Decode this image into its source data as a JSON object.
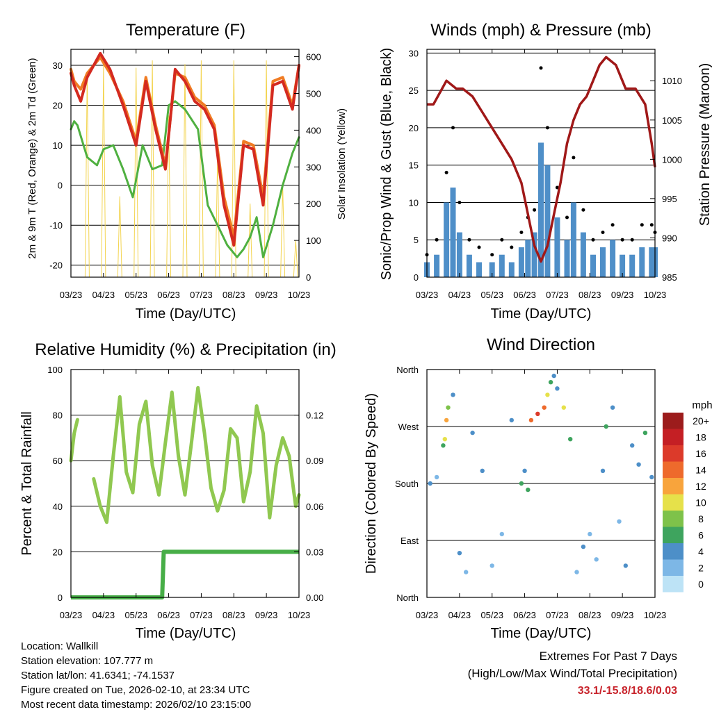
{
  "colors": {
    "t2m": "#d42a20",
    "t9m": "#f07c24",
    "td": "#4fb040",
    "solar": "#f3d450",
    "gust": "#000000",
    "wind": "#4f8fc8",
    "pressure": "#a01818",
    "rh": "#90c850",
    "precip": "#47ae47",
    "grid": "#000000"
  },
  "chart_data": [
    {
      "id": "temperature",
      "type": "line",
      "title": "Temperature (F)",
      "xlabel": "Time (Day/UTC)",
      "ylabel": "2m & 9m T (Red, Orange) & 2m Td (Green)",
      "ylabel2": "Solar Insolation (Yellow)",
      "x_ticks": [
        "03/23",
        "04/23",
        "05/23",
        "06/23",
        "07/23",
        "08/23",
        "09/23",
        "10/23"
      ],
      "y_ticks": [
        "30",
        "20",
        "10",
        "0",
        "-10",
        "-20"
      ],
      "y2_ticks": [
        "600",
        "500",
        "400",
        "300",
        "200",
        "100",
        "0"
      ],
      "ylim": [
        -23,
        34
      ],
      "y2lim": [
        0,
        620
      ],
      "series": [
        {
          "name": "2m T",
          "color": "#d42a20",
          "x": [
            0.0,
            0.1,
            0.3,
            0.5,
            0.9,
            1.2,
            1.6,
            2.0,
            2.3,
            2.6,
            2.9,
            3.2,
            3.5,
            3.8,
            4.1,
            4.4,
            4.7,
            5.0,
            5.3,
            5.6,
            5.9,
            6.2,
            6.5,
            6.8,
            7.0
          ],
          "values": [
            28,
            25,
            21,
            27,
            33,
            29,
            20,
            10,
            26,
            14,
            4,
            29,
            26,
            21,
            19,
            14,
            -5,
            -15,
            10,
            9,
            -5,
            25,
            26,
            19,
            30
          ]
        },
        {
          "name": "9m T",
          "color": "#f07c24",
          "x": [
            0.0,
            0.1,
            0.3,
            0.5,
            0.9,
            1.2,
            1.6,
            2.0,
            2.3,
            2.6,
            2.9,
            3.2,
            3.5,
            3.8,
            4.1,
            4.4,
            4.7,
            5.0,
            5.3,
            5.6,
            5.9,
            6.2,
            6.5,
            6.8,
            7.0
          ],
          "values": [
            29,
            26,
            24,
            28,
            32,
            28,
            21,
            11,
            27,
            15,
            5,
            28,
            27,
            22,
            20,
            15,
            -3,
            -13,
            11,
            10,
            -3,
            26,
            27,
            20,
            30
          ]
        },
        {
          "name": "2m Td",
          "color": "#4fb040",
          "x": [
            0.0,
            0.1,
            0.2,
            0.5,
            0.8,
            1.0,
            1.3,
            1.6,
            1.9,
            2.2,
            2.5,
            2.8,
            3.0,
            3.2,
            3.5,
            3.9,
            4.2,
            4.5,
            4.8,
            5.1,
            5.3,
            5.5,
            5.7,
            5.9,
            6.2,
            6.5,
            6.8,
            7.0
          ],
          "values": [
            14,
            16,
            15,
            7,
            5,
            9,
            10,
            4,
            -3,
            10,
            4,
            5,
            20,
            21,
            19,
            14,
            -5,
            -10,
            -15,
            -18,
            -16,
            -13,
            -8,
            -18,
            -10,
            0,
            8,
            12
          ]
        },
        {
          "name": "Solar Insolation",
          "color": "#f3d450",
          "axis": "y2",
          "x": [
            0.5,
            1.0,
            1.5,
            2.0,
            2.5,
            3.0,
            3.5,
            4.0,
            4.5,
            5.0,
            5.5,
            6.0,
            6.5,
            6.9
          ],
          "values": [
            560,
            580,
            220,
            570,
            590,
            440,
            580,
            590,
            330,
            590,
            200,
            590,
            250,
            100
          ]
        }
      ]
    },
    {
      "id": "winds",
      "type": "scatter",
      "title": "Winds (mph) & Pressure (mb)",
      "xlabel": "Time (Day/UTC)",
      "ylabel": "Sonic/Prop Wind & Gust (Blue, Black)",
      "ylabel2": "Station Pressure (Maroon)",
      "x_ticks": [
        "03/23",
        "04/23",
        "05/23",
        "06/23",
        "07/23",
        "08/23",
        "09/23",
        "10/23"
      ],
      "y_ticks": [
        "30",
        "25",
        "20",
        "15",
        "10",
        "5",
        "0"
      ],
      "y2_ticks": [
        "1010",
        "1005",
        "1000",
        "995",
        "990",
        "985"
      ],
      "ylim": [
        0,
        30.5
      ],
      "y2lim": [
        985,
        1014
      ],
      "series": [
        {
          "name": "Gust",
          "color": "#000000",
          "x": [
            0.0,
            0.3,
            0.6,
            0.8,
            1.0,
            1.3,
            1.6,
            2.0,
            2.3,
            2.6,
            2.9,
            3.1,
            3.3,
            3.5,
            3.7,
            4.0,
            4.3,
            4.5,
            4.8,
            5.1,
            5.4,
            5.7,
            6.0,
            6.3,
            6.6,
            6.9,
            7.0
          ],
          "values": [
            3,
            5,
            14,
            20,
            10,
            5,
            4,
            3,
            5,
            4,
            6,
            8,
            9,
            28,
            20,
            12,
            8,
            16,
            9,
            5,
            6,
            7,
            5,
            5,
            7,
            7,
            6
          ]
        },
        {
          "name": "Wind",
          "color": "#4f8fc8",
          "x": [
            0.0,
            0.3,
            0.6,
            0.8,
            1.0,
            1.3,
            1.6,
            2.0,
            2.3,
            2.6,
            2.9,
            3.1,
            3.3,
            3.5,
            3.7,
            4.0,
            4.3,
            4.5,
            4.8,
            5.1,
            5.4,
            5.7,
            6.0,
            6.3,
            6.6,
            6.9,
            7.0
          ],
          "values": [
            2,
            3,
            10,
            12,
            6,
            3,
            2,
            2,
            3,
            2,
            4,
            5,
            6,
            18,
            15,
            8,
            5,
            10,
            6,
            3,
            4,
            5,
            3,
            3,
            4,
            4,
            4
          ]
        },
        {
          "name": "Pressure",
          "color": "#a01818",
          "axis": "y2",
          "x": [
            0.0,
            0.2,
            0.6,
            0.9,
            1.1,
            1.4,
            1.7,
            2.0,
            2.3,
            2.6,
            2.9,
            3.1,
            3.3,
            3.5,
            3.7,
            3.9,
            4.1,
            4.3,
            4.5,
            4.7,
            4.9,
            5.1,
            5.3,
            5.5,
            5.8,
            6.1,
            6.4,
            6.7,
            6.9,
            7.0
          ],
          "values": [
            1007,
            1007,
            1010,
            1009,
            1009,
            1008,
            1006,
            1004,
            1002,
            1000,
            997,
            993,
            989,
            987,
            989,
            993,
            997,
            1002,
            1005,
            1007,
            1008,
            1010,
            1012,
            1013,
            1012,
            1009,
            1009,
            1007,
            1002,
            999
          ]
        }
      ]
    },
    {
      "id": "rh_precip",
      "type": "line",
      "title": "Relative Humidity (%) & Precipitation (in)",
      "xlabel": "Time (Day/UTC)",
      "ylabel": "Percent & Total Rainfall",
      "x_ticks": [
        "03/23",
        "04/23",
        "05/23",
        "06/23",
        "07/23",
        "08/23",
        "09/23",
        "10/23"
      ],
      "y_ticks": [
        "100",
        "80",
        "60",
        "40",
        "20",
        "0"
      ],
      "y2_ticks": [
        "0.12",
        "0.09",
        "0.06",
        "0.03",
        "0.00"
      ],
      "ylim": [
        0,
        100
      ],
      "y2lim": [
        0,
        0.15
      ],
      "series": [
        {
          "name": "RH",
          "color": "#90c850",
          "x": [
            0.0,
            0.1,
            0.2,
            0.4,
            0.7,
            0.9,
            1.1,
            1.3,
            1.5,
            1.7,
            1.9,
            2.1,
            2.3,
            2.5,
            2.7,
            2.9,
            3.1,
            3.3,
            3.5,
            3.7,
            3.9,
            4.1,
            4.3,
            4.5,
            4.7,
            4.9,
            5.1,
            5.3,
            5.5,
            5.7,
            5.9,
            6.1,
            6.3,
            6.5,
            6.7,
            6.9,
            7.0
          ],
          "values": [
            60,
            72,
            78,
            null,
            52,
            40,
            33,
            62,
            88,
            55,
            46,
            76,
            86,
            58,
            45,
            68,
            90,
            62,
            45,
            68,
            92,
            72,
            48,
            38,
            47,
            74,
            70,
            42,
            55,
            84,
            72,
            35,
            58,
            70,
            62,
            40,
            45
          ]
        },
        {
          "name": "Precipitation",
          "color": "#47ae47",
          "axis": "y2",
          "x": [
            0.0,
            1.0,
            2.0,
            2.8,
            2.85,
            3.0,
            4.0,
            5.0,
            6.0,
            7.0
          ],
          "values": [
            0.0,
            0.0,
            0.0,
            0.0,
            0.03,
            0.03,
            0.03,
            0.03,
            0.03,
            0.03
          ]
        }
      ]
    },
    {
      "id": "wind_direction",
      "type": "scatter",
      "title": "Wind Direction",
      "xlabel": "Time (Day/UTC)",
      "ylabel": "Direction (Colored By Speed)",
      "x_ticks": [
        "03/23",
        "04/23",
        "05/23",
        "06/23",
        "07/23",
        "08/23",
        "09/23",
        "10/23"
      ],
      "y_ticks": [
        "North",
        "West",
        "South",
        "East",
        "North"
      ],
      "ylim": [
        0,
        360
      ],
      "colorbar": {
        "title": "mph",
        "labels": [
          "20+",
          "18",
          "16",
          "14",
          "12",
          "10",
          "8",
          "6",
          "4",
          "2",
          "0"
        ],
        "colors": [
          "#9c1c1c",
          "#c41f24",
          "#dc3a2a",
          "#ee6a2c",
          "#f8a43c",
          "#e6e14a",
          "#7ec24a",
          "#3ea45e",
          "#4d8fc8",
          "#7db7e6",
          "#bde3f6"
        ]
      },
      "series": [
        {
          "name": "direction",
          "x": [
            0.1,
            0.3,
            0.5,
            0.55,
            0.6,
            0.65,
            0.8,
            1.0,
            1.2,
            1.4,
            1.7,
            2.0,
            2.3,
            2.6,
            2.9,
            3.0,
            3.1,
            3.2,
            3.4,
            3.6,
            3.7,
            3.8,
            3.9,
            4.0,
            4.2,
            4.4,
            4.6,
            4.8,
            5.0,
            5.2,
            5.4,
            5.5,
            5.7,
            5.9,
            6.1,
            6.3,
            6.5,
            6.7,
            6.9
          ],
          "values": [
            180,
            190,
            240,
            250,
            280,
            300,
            320,
            70,
            40,
            260,
            200,
            50,
            100,
            280,
            180,
            200,
            170,
            280,
            290,
            300,
            320,
            340,
            350,
            330,
            300,
            250,
            40,
            80,
            100,
            60,
            200,
            270,
            300,
            120,
            50,
            240,
            210,
            260,
            190
          ],
          "speeds": [
            3,
            2,
            6,
            10,
            12,
            8,
            4,
            3,
            2,
            4,
            3,
            2,
            2,
            4,
            6,
            4,
            5,
            14,
            16,
            13,
            10,
            6,
            3,
            4,
            9,
            6,
            2,
            3,
            2,
            2,
            3,
            5,
            4,
            2,
            3,
            4,
            3,
            5,
            4
          ]
        }
      ]
    }
  ],
  "info": {
    "location": "Location: Wallkill",
    "elevation": "Station elevation: 107.777 m",
    "latlon": "Station lat/lon: 41.6341; -74.1537",
    "created": "Figure created on Tue, 2026-02-10, at 23:34 UTC",
    "recent": "Most recent data timestamp: 2026/02/10 23:15:00"
  },
  "extremes": {
    "title": "Extremes For Past 7 Days",
    "subtitle": "(High/Low/Max Wind/Total Precipitation)",
    "values": "33.1/-15.8/18.6/0.03"
  }
}
